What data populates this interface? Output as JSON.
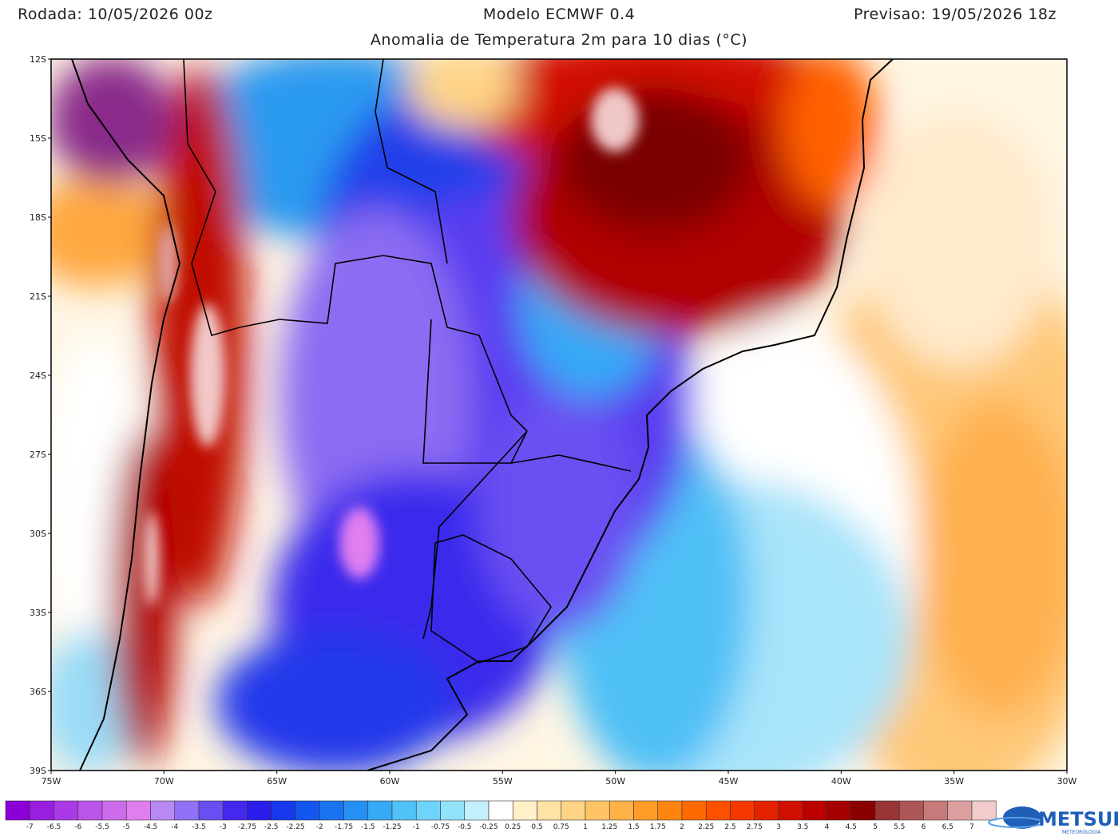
{
  "header": {
    "run": "Rodada: 10/05/2026 00z",
    "model": "Modelo ECMWF 0.4",
    "forecast": "Previsao: 19/05/2026 18z",
    "subtitle": "Anomalia de Temperatura 2m para 10 dias (°C)"
  },
  "map": {
    "lat_labels": [
      "12S",
      "15S",
      "18S",
      "21S",
      "24S",
      "27S",
      "30S",
      "33S",
      "36S",
      "39S"
    ],
    "lon_labels": [
      "75W",
      "70W",
      "65W",
      "60W",
      "55W",
      "50W",
      "45W",
      "40W",
      "35W",
      "30W"
    ]
  },
  "colorbar": {
    "labels": [
      "-7",
      "-6.5",
      "-6",
      "-5.5",
      "-5",
      "-4.5",
      "-4",
      "-3.5",
      "-3",
      "-2.75",
      "-2.5",
      "-2.25",
      "-2",
      "-1.75",
      "-1.5",
      "-1.25",
      "-1",
      "-0.75",
      "-0.5",
      "-0.25",
      "0.25",
      "0.5",
      "0.75",
      "1",
      "1.25",
      "1.5",
      "1.75",
      "2",
      "2.25",
      "2.5",
      "2.75",
      "3",
      "3.5",
      "4",
      "4.5",
      "5",
      "5.5",
      "6",
      "6.5",
      "7"
    ],
    "colors": [
      "#8c00d8",
      "#9a1ee0",
      "#aa3ae6",
      "#bb55ea",
      "#cc6cec",
      "#e07ef0",
      "#b888f4",
      "#9070f4",
      "#6a4ef2",
      "#4428ee",
      "#2a1cea",
      "#1838ee",
      "#1456f0",
      "#1a74f2",
      "#2490f4",
      "#36aaf6",
      "#50c2f8",
      "#6ed4fa",
      "#92e2fb",
      "#c4f0fd",
      "#ffffff",
      "#fff0c8",
      "#ffe2a6",
      "#ffd486",
      "#ffc466",
      "#ffb248",
      "#ff9c28",
      "#ff8410",
      "#ff6a00",
      "#ff5000",
      "#f63800",
      "#e42200",
      "#d21000",
      "#bc0000",
      "#a40000",
      "#8a0000",
      "#983434",
      "#ae5656",
      "#c67a7a",
      "#dca0a0",
      "#f2cccc"
    ]
  },
  "logo": {
    "name": "METSUL",
    "tagline": "METEOROLOGIA"
  }
}
